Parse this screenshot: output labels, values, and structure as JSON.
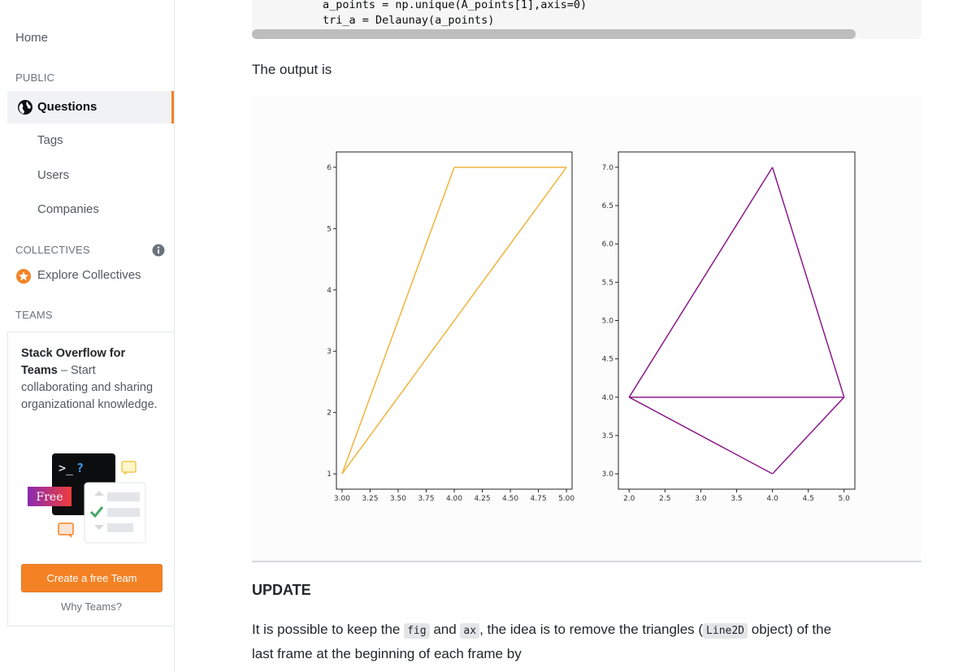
{
  "sidebar": {
    "home": "Home",
    "public_label": "PUBLIC",
    "questions": "Questions",
    "tags": "Tags",
    "users": "Users",
    "companies": "Companies",
    "collectives_label": "COLLECTIVES",
    "explore_collectives": "Explore Collectives",
    "teams_label": "TEAMS",
    "teams_promo": {
      "title": "Stack Overflow for Teams",
      "dash": " – ",
      "body": "Start collaborating and sharing organizational knowledge.",
      "free_badge": "Free",
      "terminal_prompt": ">_",
      "terminal_q": "?",
      "cta": "Create a free Team",
      "why": "Why Teams?"
    }
  },
  "main": {
    "code_lines": [
      "a_points = np.unique(A_points[1],axis=0)",
      "tri_a = Delaunay(a_points)"
    ],
    "output_text": "The output is",
    "update_heading": "UPDATE",
    "update_para": {
      "t1": "It is possible to keep the ",
      "code1": "fig",
      "t2": " and ",
      "code2": "ax",
      "t3": ", the idea is to remove the triangles (",
      "code3": "Line2D",
      "t4": " object) of the",
      "line2": "last frame at the beginning of each frame by"
    }
  },
  "chart_data": [
    {
      "type": "line",
      "color": "#f0b43c",
      "x_ticks": [
        "3.00",
        "3.25",
        "3.50",
        "3.75",
        "4.00",
        "4.25",
        "4.50",
        "4.75",
        "5.00"
      ],
      "y_ticks": [
        "1",
        "2",
        "3",
        "4",
        "5",
        "6"
      ],
      "xlim": [
        2.95,
        5.05
      ],
      "ylim": [
        0.75,
        6.25
      ],
      "segments": [
        [
          [
            3.0,
            1.0
          ],
          [
            4.0,
            6.0
          ]
        ],
        [
          [
            4.0,
            6.0
          ],
          [
            5.0,
            6.0
          ]
        ],
        [
          [
            5.0,
            6.0
          ],
          [
            3.0,
            1.0
          ]
        ]
      ]
    },
    {
      "type": "line",
      "color": "#8b1a8b",
      "x_ticks": [
        "2.0",
        "2.5",
        "3.0",
        "3.5",
        "4.0",
        "4.5",
        "5.0"
      ],
      "y_ticks": [
        "3.0",
        "3.5",
        "4.0",
        "4.5",
        "5.0",
        "5.5",
        "6.0",
        "6.5",
        "7.0"
      ],
      "xlim": [
        1.85,
        5.15
      ],
      "ylim": [
        2.8,
        7.2
      ],
      "segments": [
        [
          [
            2.0,
            4.0
          ],
          [
            4.0,
            7.0
          ]
        ],
        [
          [
            4.0,
            7.0
          ],
          [
            5.0,
            4.0
          ]
        ],
        [
          [
            5.0,
            4.0
          ],
          [
            2.0,
            4.0
          ]
        ],
        [
          [
            2.0,
            4.0
          ],
          [
            4.0,
            3.0
          ]
        ],
        [
          [
            4.0,
            3.0
          ],
          [
            5.0,
            4.0
          ]
        ]
      ]
    }
  ]
}
